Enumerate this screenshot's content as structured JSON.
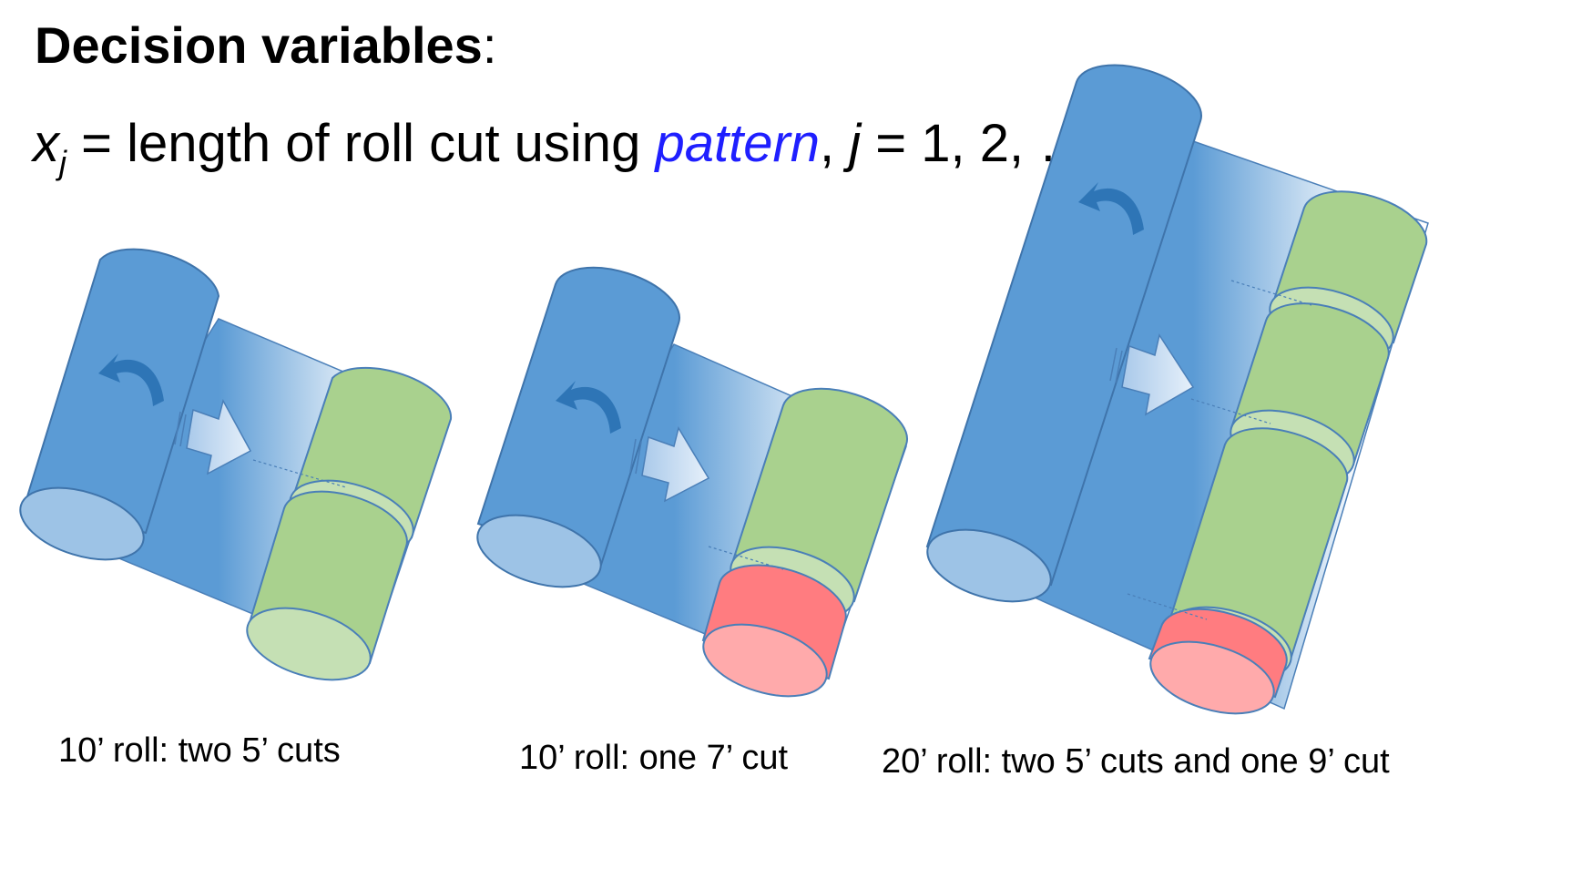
{
  "heading": {
    "bold": "Decision variables",
    "suffix": ":"
  },
  "formula": {
    "var": "x",
    "sub": "j",
    "text1": " = length of roll cut using ",
    "emph": "pattern",
    "text2": ", ",
    "idx": "j",
    "text3": " = 1, 2, …"
  },
  "captions": [
    "10’ roll: two 5’ cuts",
    "10’ roll: one 7’ cut",
    "20’ roll: two 5’ cuts and one 9’ cut"
  ],
  "colors": {
    "source_roll": "#5b9bd5",
    "cut_piece": "#a9d18e",
    "waste_piece": "#ff7c80",
    "rotate_arrow": "#2e75b6"
  }
}
